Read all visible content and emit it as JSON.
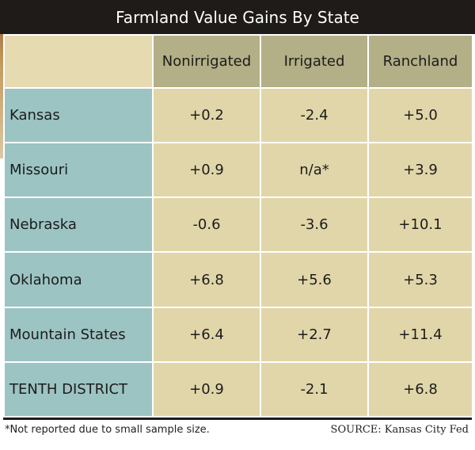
{
  "title": "Farmland Value Gains By State",
  "columns": [
    "",
    "Nonirrigated",
    "Irrigated",
    "Ranchland"
  ],
  "rows": [
    {
      "state": "Kansas",
      "nonirrigated": "+0.2",
      "irrigated": "-2.4",
      "ranchland": "+5.0"
    },
    {
      "state": "Missouri",
      "nonirrigated": "+0.9",
      "irrigated": "n/a*",
      "ranchland": "+3.9"
    },
    {
      "state": "Nebraska",
      "nonirrigated": "-0.6",
      "irrigated": "-3.6",
      "ranchland": "+10.1"
    },
    {
      "state": "Oklahoma",
      "nonirrigated": "+6.8",
      "irrigated": "+5.6",
      "ranchland": "+5.3"
    },
    {
      "state": "Mountain States",
      "nonirrigated": "+6.4",
      "irrigated": "+2.7",
      "ranchland": "+11.4"
    },
    {
      "state": "TENTH DISTRICT",
      "nonirrigated": "+0.9",
      "irrigated": "-2.1",
      "ranchland": "+6.8"
    }
  ],
  "footnote": "*Not reported due to small sample size.",
  "source": "SOURCE: Kansas City Fed",
  "colors": {
    "title_bg": "#1e1b19",
    "header_bg": "#b3af86",
    "state_bg": "#9cc4c3",
    "cell_bg": "#e1d6a9"
  }
}
